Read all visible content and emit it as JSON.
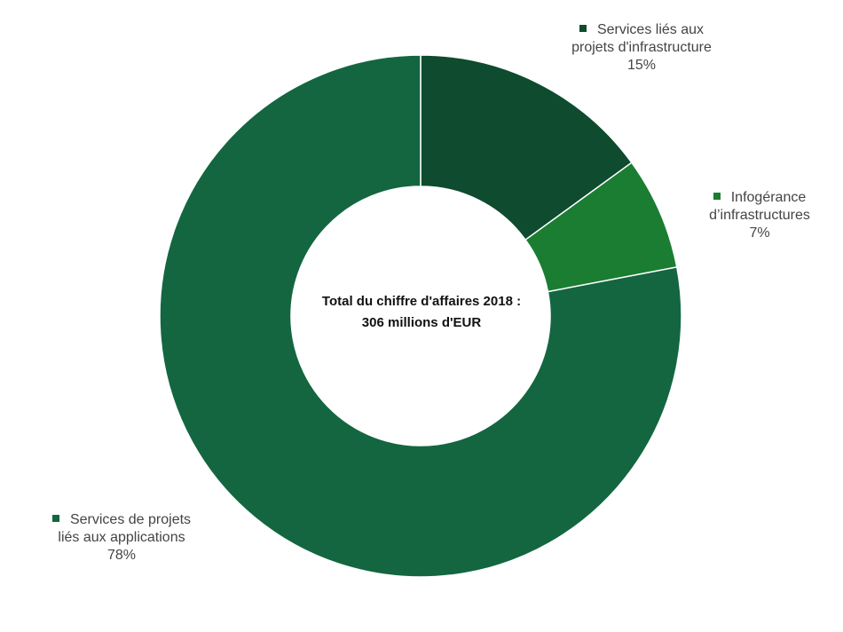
{
  "chart_data": {
    "type": "pie",
    "donut": true,
    "center_text": [
      "Total du chiffre d'affaires 2018 :",
      "306 millions d'EUR"
    ],
    "slices": [
      {
        "label_lines": [
          "Services liés aux",
          "projets d'infrastructure"
        ],
        "value": 15,
        "value_label": "15%",
        "color": "#0e4b2f"
      },
      {
        "label_lines": [
          "Infogérance",
          "d’infrastructures"
        ],
        "value": 7,
        "value_label": "7%",
        "color": "#1a7d32"
      },
      {
        "label_lines": [
          "Services de projets",
          "liés aux applications"
        ],
        "value": 78,
        "value_label": "78%",
        "color": "#136640"
      }
    ]
  }
}
